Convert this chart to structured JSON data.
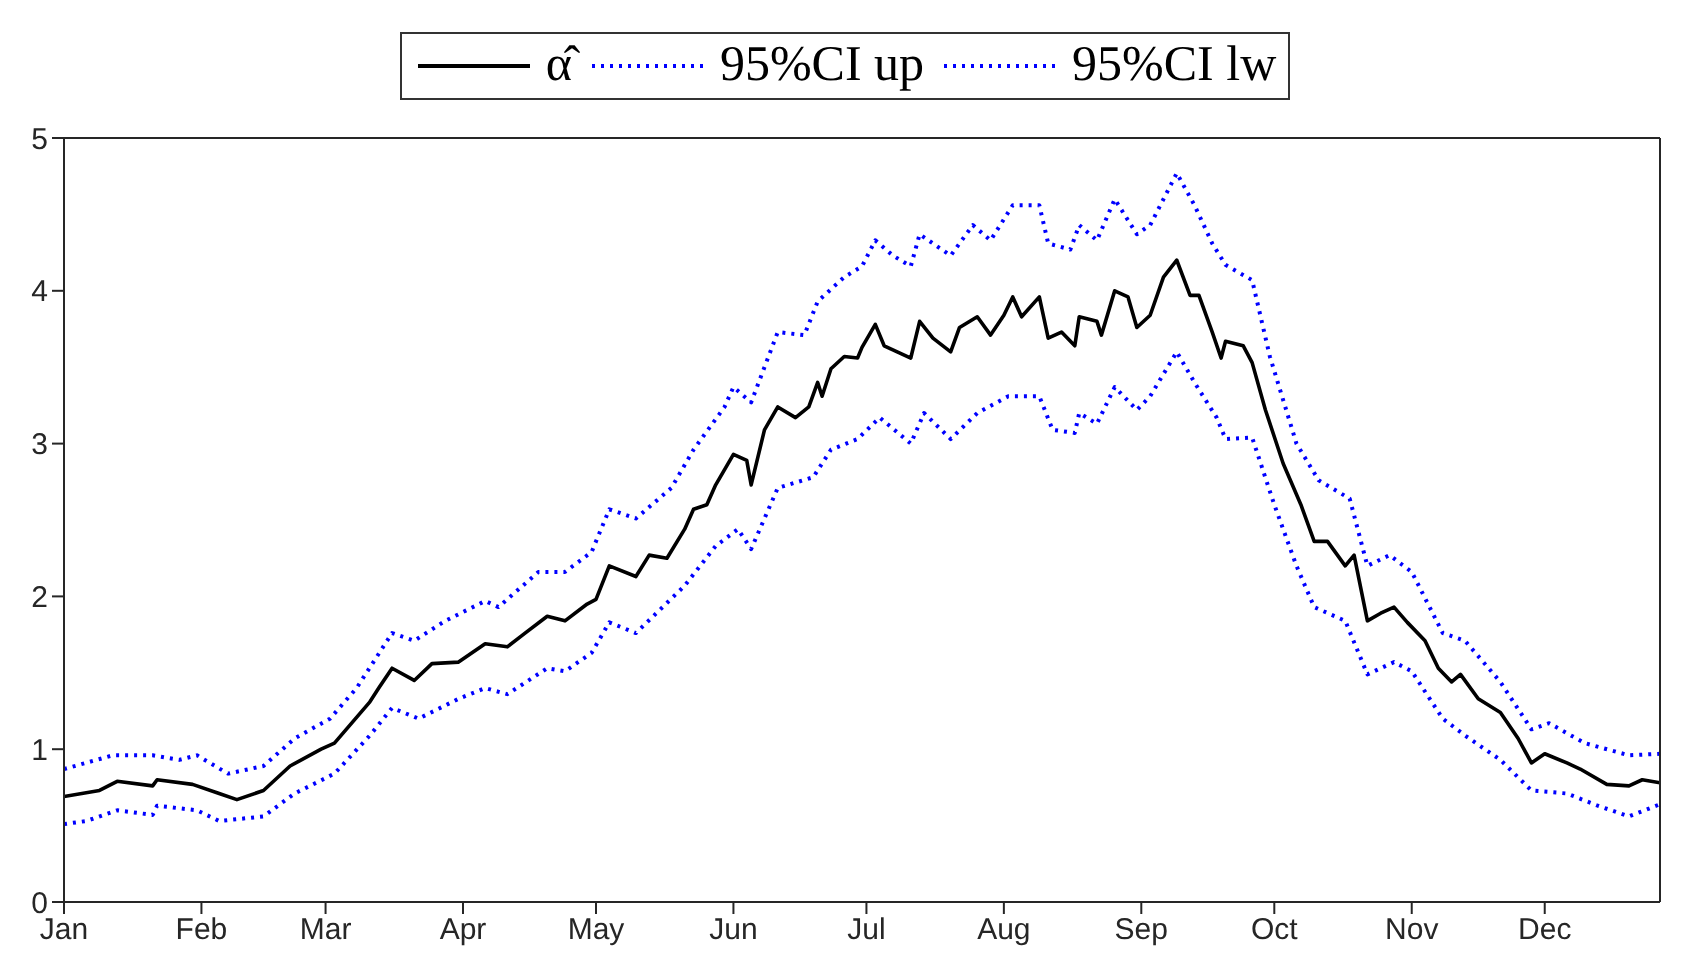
{
  "chart_data": {
    "type": "line",
    "legend": "top",
    "grid": false,
    "marker": "none",
    "xlim": [
      "--01-01",
      "--12-27"
    ],
    "ylim": [
      0,
      5
    ],
    "yticks": [
      0,
      1,
      2,
      3,
      4,
      5
    ],
    "xticks": [
      {
        "value": "--01-01",
        "label": "Jan"
      },
      {
        "value": "--02-01",
        "label": "Feb"
      },
      {
        "value": "--03-01",
        "label": "Mar"
      },
      {
        "value": "--04-01",
        "label": "Apr"
      },
      {
        "value": "--05-01",
        "label": "May"
      },
      {
        "value": "--06-01",
        "label": "Jun"
      },
      {
        "value": "--07-01",
        "label": "Jul"
      },
      {
        "value": "--08-01",
        "label": "Aug"
      },
      {
        "value": "--09-01",
        "label": "Sep"
      },
      {
        "value": "--10-01",
        "label": "Oct"
      },
      {
        "value": "--11-01",
        "label": "Nov"
      },
      {
        "value": "--12-01",
        "label": "Dec"
      }
    ],
    "series": [
      {
        "name": "α̂",
        "color": "#000000",
        "line_style": "solid",
        "x": [
          "--01-01",
          "--01-09",
          "--01-13",
          "--01-21",
          "--01-22",
          "--01-30",
          "--02-05",
          "--02-09",
          "--02-15",
          "--02-21",
          "--02-28",
          "--03-03",
          "--03-11",
          "--03-13",
          "--03-16",
          "--03-21",
          "--03-25",
          "--03-31",
          "--04-06",
          "--04-11",
          "--04-15",
          "--04-20",
          "--04-24",
          "--04-29",
          "--05-01",
          "--05-04",
          "--05-10",
          "--05-13",
          "--05-17",
          "--05-21",
          "--05-23",
          "--05-26",
          "--05-28",
          "--06-01",
          "--06-04",
          "--06-05",
          "--06-08",
          "--06-11",
          "--06-15",
          "--06-18",
          "--06-20",
          "--06-21",
          "--06-23",
          "--06-26",
          "--06-29",
          "--06-30",
          "--07-03",
          "--07-05",
          "--07-11",
          "--07-13",
          "--07-16",
          "--07-20",
          "--07-22",
          "--07-26",
          "--07-29",
          "--08-01",
          "--08-03",
          "--08-05",
          "--08-09",
          "--08-11",
          "--08-14",
          "--08-17",
          "--08-18",
          "--08-22",
          "--08-23",
          "--08-26",
          "--08-29",
          "--08-31",
          "--09-03",
          "--09-06",
          "--09-09",
          "--09-12",
          "--09-14",
          "--09-17",
          "--09-19",
          "--09-20",
          "--09-24",
          "--09-26",
          "--09-29",
          "--10-03",
          "--10-07",
          "--10-10",
          "--10-13",
          "--10-17",
          "--10-19",
          "--10-22",
          "--10-25",
          "--10-28",
          "--10-31",
          "--11-04",
          "--11-07",
          "--11-10",
          "--11-12",
          "--11-16",
          "--11-21",
          "--11-25",
          "--11-28",
          "--12-01",
          "--12-06",
          "--12-09",
          "--12-15",
          "--12-20",
          "--12-23",
          "--12-27"
        ],
        "values": [
          0.69,
          0.73,
          0.79,
          0.76,
          0.8,
          0.77,
          0.71,
          0.67,
          0.73,
          0.89,
          1.0,
          1.04,
          1.31,
          1.4,
          1.53,
          1.45,
          1.56,
          1.57,
          1.69,
          1.67,
          1.76,
          1.87,
          1.84,
          1.95,
          1.98,
          2.2,
          2.13,
          2.27,
          2.25,
          2.44,
          2.57,
          2.6,
          2.73,
          2.93,
          2.89,
          2.73,
          3.09,
          3.24,
          3.17,
          3.24,
          3.4,
          3.31,
          3.49,
          3.57,
          3.56,
          3.63,
          3.78,
          3.64,
          3.56,
          3.8,
          3.69,
          3.6,
          3.76,
          3.83,
          3.71,
          3.84,
          3.96,
          3.83,
          3.96,
          3.69,
          3.73,
          3.64,
          3.83,
          3.8,
          3.71,
          4.0,
          3.96,
          3.76,
          3.84,
          4.09,
          4.2,
          3.97,
          3.97,
          3.73,
          3.56,
          3.67,
          3.64,
          3.53,
          3.22,
          2.87,
          2.6,
          2.36,
          2.36,
          2.2,
          2.27,
          1.84,
          1.89,
          1.93,
          1.83,
          1.71,
          1.53,
          1.44,
          1.49,
          1.33,
          1.24,
          1.07,
          0.91,
          0.97,
          0.91,
          0.87,
          0.77,
          0.76,
          0.8,
          0.78
        ]
      },
      {
        "name": "95%CI up",
        "color": "#0000ff",
        "line_style": "dotted",
        "x": [
          "--01-01",
          "--01-12",
          "--01-21",
          "--01-27",
          "--01-31",
          "--02-07",
          "--02-15",
          "--02-22",
          "--03-02",
          "--03-08",
          "--03-16",
          "--03-21",
          "--03-28",
          "--04-06",
          "--04-09",
          "--04-18",
          "--04-24",
          "--04-30",
          "--05-04",
          "--05-10",
          "--05-18",
          "--05-23",
          "--05-30",
          "--06-01",
          "--06-05",
          "--06-11",
          "--06-17",
          "--06-20",
          "--06-26",
          "--06-30",
          "--07-03",
          "--07-07",
          "--07-11",
          "--07-13",
          "--07-20",
          "--07-25",
          "--07-29",
          "--08-03",
          "--08-09",
          "--08-11",
          "--08-16",
          "--08-18",
          "--08-22",
          "--08-26",
          "--08-31",
          "--09-03",
          "--09-09",
          "--09-13",
          "--09-17",
          "--09-20",
          "--09-26",
          "--09-30",
          "--10-06",
          "--10-11",
          "--10-18",
          "--10-22",
          "--10-27",
          "--11-01",
          "--11-08",
          "--11-13",
          "--11-21",
          "--11-28",
          "--12-02",
          "--12-10",
          "--12-20",
          "--12-27"
        ],
        "values": [
          0.87,
          0.96,
          0.96,
          0.93,
          0.96,
          0.84,
          0.89,
          1.07,
          1.2,
          1.4,
          1.76,
          1.71,
          1.84,
          1.97,
          1.93,
          2.16,
          2.16,
          2.29,
          2.57,
          2.51,
          2.71,
          2.96,
          3.24,
          3.37,
          3.27,
          3.73,
          3.71,
          3.93,
          4.09,
          4.16,
          4.33,
          4.23,
          4.16,
          4.37,
          4.23,
          4.43,
          4.33,
          4.56,
          4.56,
          4.31,
          4.27,
          4.43,
          4.33,
          4.6,
          4.37,
          4.43,
          4.77,
          4.56,
          4.31,
          4.17,
          4.07,
          3.57,
          3.0,
          2.76,
          2.64,
          2.2,
          2.27,
          2.16,
          1.76,
          1.71,
          1.44,
          1.13,
          1.17,
          1.04,
          0.96,
          0.97
        ]
      },
      {
        "name": "95%CI lw",
        "color": "#0000ff",
        "line_style": "dotted",
        "x": [
          "--01-01",
          "--01-06",
          "--01-13",
          "--01-21",
          "--01-22",
          "--01-31",
          "--02-05",
          "--02-15",
          "--02-22",
          "--03-03",
          "--03-11",
          "--03-16",
          "--03-22",
          "--03-31",
          "--04-06",
          "--04-11",
          "--04-20",
          "--04-24",
          "--04-30",
          "--05-04",
          "--05-10",
          "--05-21",
          "--05-28",
          "--06-02",
          "--06-05",
          "--06-11",
          "--06-19",
          "--06-23",
          "--06-29",
          "--07-04",
          "--07-11",
          "--07-14",
          "--07-20",
          "--07-26",
          "--08-02",
          "--08-09",
          "--08-12",
          "--08-17",
          "--08-18",
          "--08-22",
          "--08-26",
          "--08-31",
          "--09-03",
          "--09-09",
          "--09-13",
          "--09-18",
          "--09-20",
          "--09-26",
          "--10-01",
          "--10-06",
          "--10-10",
          "--10-17",
          "--10-22",
          "--10-28",
          "--11-01",
          "--11-08",
          "--11-13",
          "--11-21",
          "--11-28",
          "--12-06",
          "--12-13",
          "--12-20",
          "--12-27"
        ],
        "values": [
          0.51,
          0.53,
          0.6,
          0.57,
          0.63,
          0.6,
          0.53,
          0.56,
          0.71,
          0.84,
          1.09,
          1.27,
          1.2,
          1.33,
          1.4,
          1.36,
          1.53,
          1.51,
          1.63,
          1.83,
          1.76,
          2.07,
          2.33,
          2.44,
          2.31,
          2.71,
          2.78,
          2.96,
          3.03,
          3.17,
          3.0,
          3.2,
          3.03,
          3.2,
          3.31,
          3.31,
          3.09,
          3.07,
          3.2,
          3.13,
          3.37,
          3.22,
          3.31,
          3.6,
          3.4,
          3.17,
          3.03,
          3.04,
          2.6,
          2.2,
          1.93,
          1.84,
          1.49,
          1.57,
          1.51,
          1.2,
          1.09,
          0.93,
          0.73,
          0.71,
          0.63,
          0.56,
          0.64
        ]
      }
    ]
  }
}
